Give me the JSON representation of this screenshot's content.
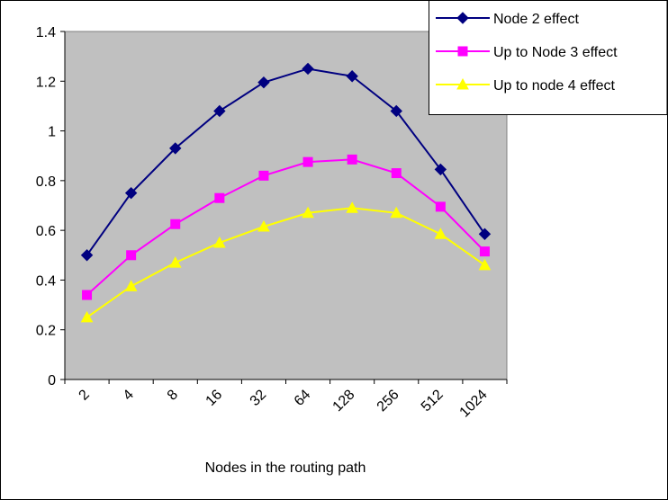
{
  "chart_data": {
    "type": "line",
    "x_label": "Nodes in the routing path",
    "categories": [
      "2",
      "4",
      "8",
      "16",
      "32",
      "64",
      "128",
      "256",
      "512",
      "1024"
    ],
    "series": [
      {
        "name": "Node 2 effect",
        "color": "#000080",
        "marker": "diamond",
        "values": [
          0.5,
          0.75,
          0.93,
          1.08,
          1.195,
          1.25,
          1.22,
          1.08,
          0.845,
          0.585
        ]
      },
      {
        "name": "Up to Node 3 effect",
        "color": "#ff00ff",
        "marker": "square",
        "values": [
          0.34,
          0.5,
          0.625,
          0.73,
          0.82,
          0.875,
          0.885,
          0.83,
          0.695,
          0.515
        ]
      },
      {
        "name": "Up to node 4 effect",
        "color": "#ffff00",
        "marker": "triangle",
        "values": [
          0.25,
          0.375,
          0.47,
          0.55,
          0.615,
          0.67,
          0.69,
          0.67,
          0.585,
          0.46
        ]
      }
    ],
    "ylim": [
      0,
      1.4
    ],
    "yticks": [
      0,
      0.2,
      0.4,
      0.6,
      0.8,
      1,
      1.2,
      1.4
    ],
    "plot_background": "#c0c0c0",
    "legend": "top-right"
  }
}
